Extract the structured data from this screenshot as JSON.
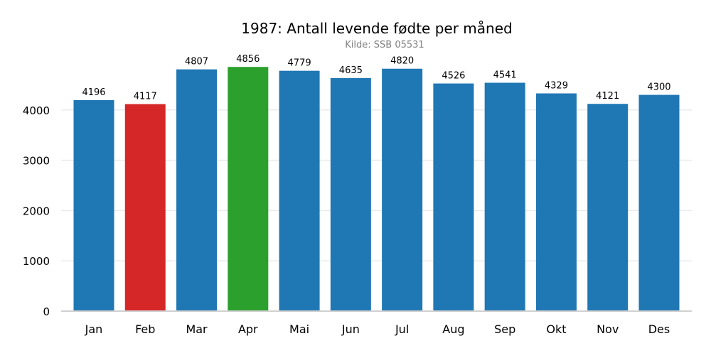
{
  "chart_data": {
    "type": "bar",
    "title": "1987: Antall levende fødte per måned",
    "subtitle": "Kilde: SSB 05531",
    "xlabel": "",
    "ylabel": "",
    "categories": [
      "Jan",
      "Feb",
      "Mar",
      "Apr",
      "Mai",
      "Jun",
      "Jul",
      "Aug",
      "Sep",
      "Okt",
      "Nov",
      "Des"
    ],
    "values": [
      4196,
      4117,
      4807,
      4856,
      4779,
      4635,
      4820,
      4526,
      4541,
      4329,
      4121,
      4300
    ],
    "yticks": [
      0,
      1000,
      2000,
      3000,
      4000
    ],
    "ylim": [
      0,
      5000
    ],
    "grid": "horizontal",
    "colors": {
      "default": "#1f77b4",
      "min": "#d62728",
      "max": "#2ca02c",
      "grid": "#ebebeb",
      "axis": "#d0d0d0",
      "subtitle": "#808080"
    },
    "highlights": {
      "min_month": "Feb",
      "max_month": "Apr"
    }
  }
}
